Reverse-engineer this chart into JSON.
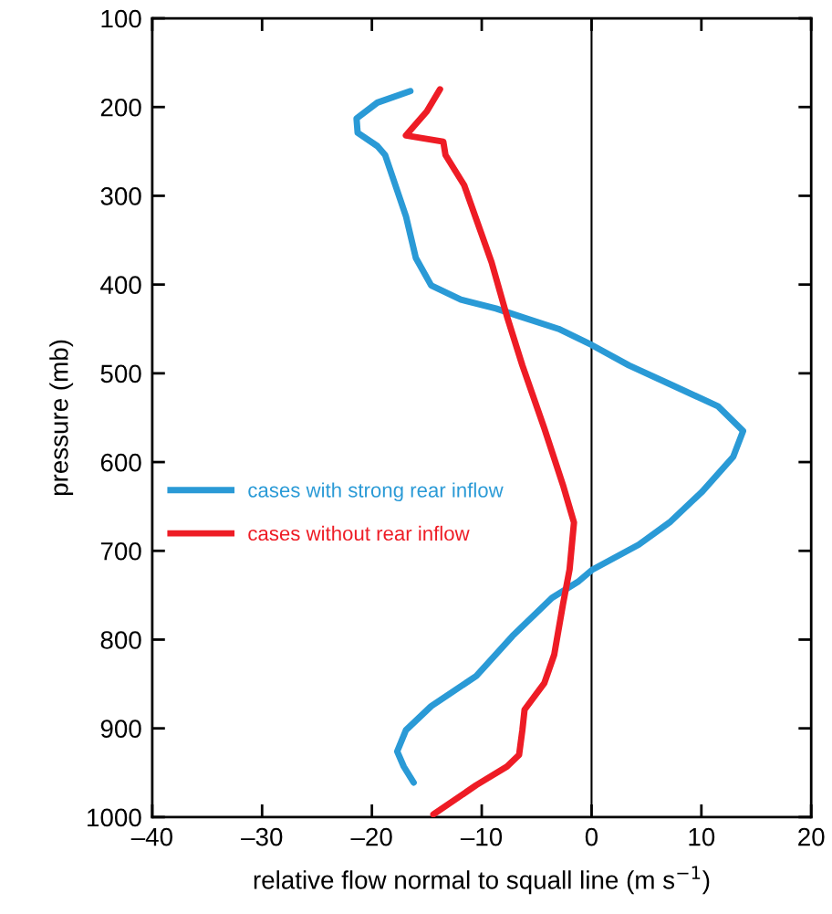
{
  "chart_data": {
    "type": "line",
    "xlabel": "relative flow normal to squall line (m s$^{−1}$)",
    "ylabel": "pressure (mb)",
    "xlim": [
      -40,
      20
    ],
    "xticks": [
      {
        "value": -40,
        "label": "–40"
      },
      {
        "value": -30,
        "label": "–30"
      },
      {
        "value": -20,
        "label": "–20"
      },
      {
        "value": -10,
        "label": "–10"
      },
      0,
      10,
      20
    ],
    "ylim": [
      1000,
      100
    ],
    "yticks": [
      100,
      200,
      300,
      400,
      500,
      600,
      700,
      800,
      900,
      1000
    ],
    "grid": false,
    "legend": "left",
    "marker": "none",
    "line_style": "solid",
    "ref_lines": [
      {
        "axis": "x",
        "value": 0,
        "color": "#000000"
      }
    ],
    "series": [
      {
        "name": "cases with strong rear inflow",
        "color": "#2a9ad6",
        "x": [
          -16.5,
          -19.5,
          -21.4,
          -21.3,
          -19.5,
          -18.8,
          -16.9,
          -16.0,
          -14.6,
          -11.9,
          -8.7,
          -6.5,
          -3.0,
          0,
          3.4,
          7.1,
          11.5,
          13.8,
          12.9,
          10.1,
          7.1,
          4.3,
          0.1,
          -1.25,
          -3.6,
          -7.2,
          -10.5,
          -14.6,
          -16.9,
          -17.7,
          -17.1,
          -16.2
        ],
        "values": [
          182,
          195,
          213,
          229,
          244,
          254,
          323,
          370,
          401,
          417,
          427,
          436,
          450,
          468,
          491,
          512,
          537,
          565,
          594,
          633,
          668,
          693,
          721,
          735,
          753,
          796,
          841,
          875,
          902,
          926,
          943,
          961
        ]
      },
      {
        "name": "cases without rear inflow",
        "color": "#ee1c25",
        "x": [
          -13.8,
          -15.0,
          -16.9,
          -13.5,
          -13.3,
          -11.6,
          -9.1,
          -7.7,
          -6.3,
          -4.3,
          -2.6,
          -1.6,
          -2.0,
          -2.6,
          -3.4,
          -4.3,
          -6.1,
          -6.3,
          -6.6,
          -7.7,
          -10.5,
          -14.4
        ],
        "values": [
          180,
          205,
          232,
          239,
          254,
          288,
          375,
          436,
          491,
          562,
          626,
          668,
          721,
          760,
          817,
          849,
          879,
          902,
          930,
          943,
          964,
          997
        ]
      }
    ]
  }
}
